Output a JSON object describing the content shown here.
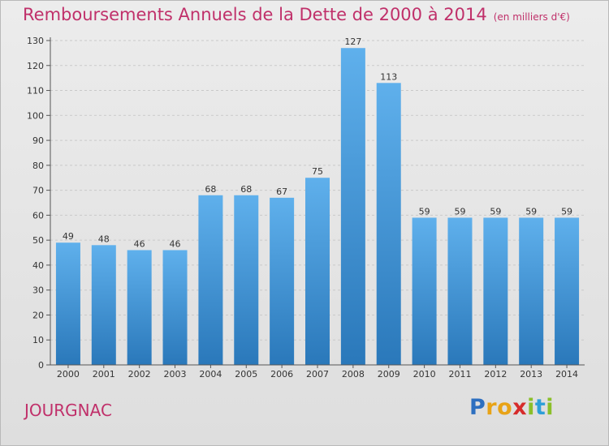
{
  "header": {
    "title": "Remboursements Annuels de la Dette de 2000 à 2014",
    "subtitle": "(en milliers d'€)"
  },
  "footer": {
    "town": "JOURGNAC",
    "logo": "Proxiti"
  },
  "colors": {
    "title": "#c0306a",
    "bar_top": "#5fb0ec",
    "bar_bottom": "#2a78ba",
    "logo_letters": [
      "#2d6fc0",
      "#e8a317",
      "#e8a317",
      "#d62b2b",
      "#8bbf2a",
      "#2d9fd8",
      "#8bbf2a"
    ]
  },
  "chart_data": {
    "type": "bar",
    "title": "Remboursements Annuels de la Dette de 2000 à 2014",
    "subtitle": "(en milliers d'€)",
    "categories": [
      "2000",
      "2001",
      "2002",
      "2003",
      "2004",
      "2005",
      "2006",
      "2007",
      "2008",
      "2009",
      "2010",
      "2011",
      "2012",
      "2013",
      "2014"
    ],
    "values": [
      49,
      48,
      46,
      46,
      68,
      68,
      67,
      75,
      127,
      113,
      59,
      59,
      59,
      59,
      59
    ],
    "ylim": [
      0,
      130
    ],
    "yticks": [
      0,
      10,
      20,
      30,
      40,
      50,
      60,
      70,
      80,
      90,
      100,
      110,
      120,
      130
    ],
    "grid": true,
    "legend": "none"
  }
}
